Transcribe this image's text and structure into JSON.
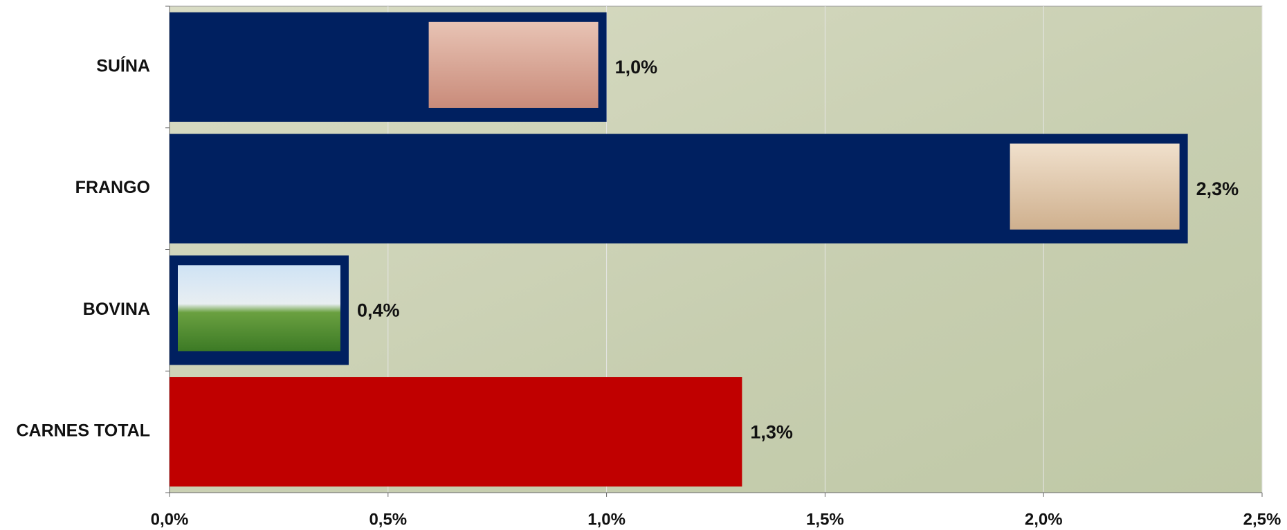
{
  "chart_data": {
    "type": "hbar",
    "categories": [
      "SUÍNA",
      "FRANGO",
      "BOVINA",
      "CARNES TOTAL"
    ],
    "values": [
      1.0,
      2.33,
      0.41,
      1.31
    ],
    "value_labels": [
      "1,0%",
      "2,3%",
      "0,4%",
      "1,3%"
    ],
    "colors": [
      "#002060",
      "#002060",
      "#002060",
      "#c00000"
    ],
    "xlim": [
      0,
      2.5
    ],
    "xticks": [
      {
        "value": 0,
        "label": "0,0%"
      },
      {
        "value": 0.5,
        "label": "0,5%"
      },
      {
        "value": 1.0,
        "label": "1,0%"
      },
      {
        "value": 1.5,
        "label": "1,5%"
      },
      {
        "value": 2.0,
        "label": "2,0%"
      },
      {
        "value": 2.5,
        "label": "2,5%"
      }
    ],
    "grid": true
  }
}
